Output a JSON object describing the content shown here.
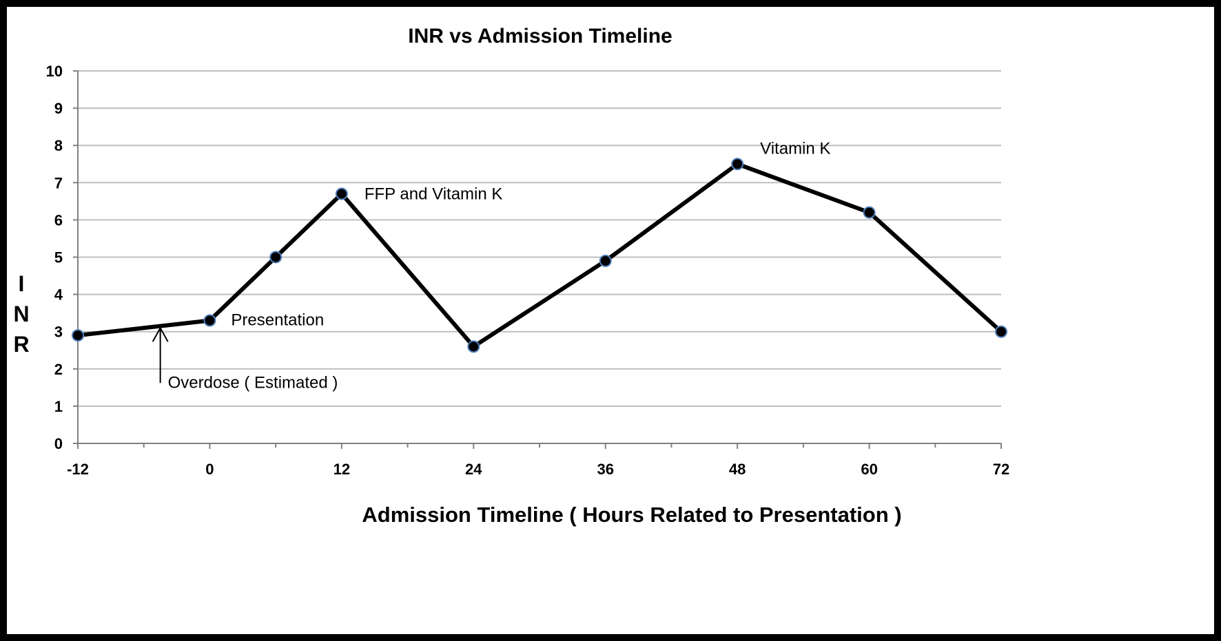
{
  "chart_data": {
    "type": "line",
    "title": "INR vs Admission Timeline",
    "xlabel": "Admission Timeline ( Hours Related to Presentation )",
    "ylabel": "I N R",
    "xlim": [
      -12,
      72
    ],
    "ylim": [
      0,
      10
    ],
    "x_ticks": [
      -12,
      0,
      12,
      24,
      36,
      48,
      60,
      72
    ],
    "x_tick_labels": [
      "-12",
      "0",
      "12",
      "24",
      "36",
      "48",
      "60",
      "72"
    ],
    "x_minor_ticks": [
      -6,
      6,
      18,
      30,
      42,
      54,
      66
    ],
    "y_ticks": [
      0,
      1,
      2,
      3,
      4,
      5,
      6,
      7,
      8,
      9,
      10
    ],
    "y_tick_labels": [
      "0",
      "1",
      "2",
      "3",
      "4",
      "5",
      "6",
      "7",
      "8",
      "9",
      "10"
    ],
    "grid": "horizontal",
    "series": [
      {
        "name": "INR",
        "x": [
          -12,
          0,
          6,
          12,
          24,
          36,
          48,
          60,
          72
        ],
        "values": [
          2.9,
          3.3,
          5.0,
          6.7,
          2.6,
          4.9,
          7.5,
          6.2,
          3.0
        ]
      }
    ],
    "annotations": [
      {
        "text": "Presentation",
        "x": 0,
        "y": 3.3
      },
      {
        "text": "FFP and Vitamin K",
        "x": 12,
        "y": 6.7
      },
      {
        "text": "Vitamin K",
        "x": 48,
        "y": 7.5
      },
      {
        "text": "Overdose ( Estimated )",
        "x": -4.5,
        "y": 3.1,
        "arrow": true
      }
    ],
    "colors": {
      "line": "#000000",
      "marker_fill": "#000000",
      "marker_edge": "#4f81bd",
      "grid": "#bfbfbf",
      "background": "#ffffff",
      "frame": "#000000"
    }
  }
}
